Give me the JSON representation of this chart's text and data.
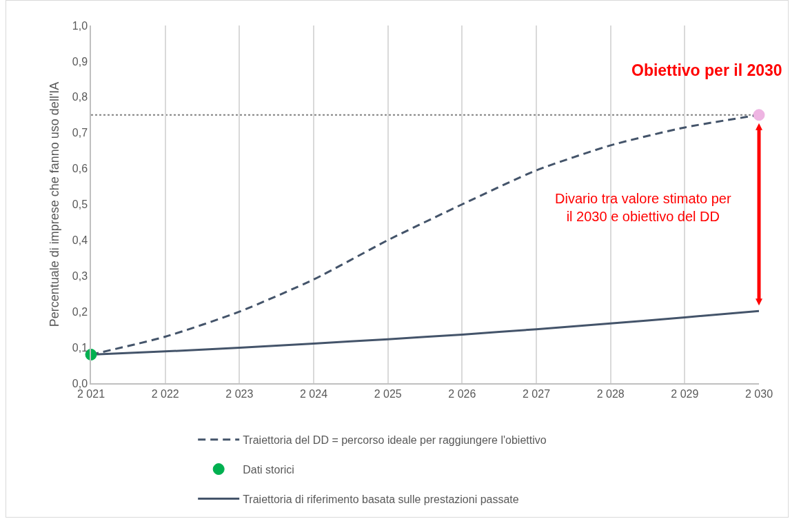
{
  "chart_data": {
    "type": "line",
    "ylabel": "Percentuale di imprese che fanno uso dell'IA",
    "x": [
      2021,
      2022,
      2023,
      2024,
      2025,
      2026,
      2027,
      2028,
      2029,
      2030
    ],
    "series": [
      {
        "name": "Traiettoria del DD = percorso ideale per raggiungere l'obiettivo",
        "color": "#44546a",
        "line_style": "dashed",
        "values": [
          0.08,
          0.13,
          0.2,
          0.29,
          0.4,
          0.5,
          0.595,
          0.665,
          0.715,
          0.75
        ]
      },
      {
        "name": "Dati storici",
        "type": "scatter",
        "color": "#00b050",
        "marker": "circle",
        "x": [
          2021
        ],
        "values": [
          0.08
        ]
      },
      {
        "name": "Traiettoria di riferimento basata sulle prestazioni passate",
        "color": "#44546a",
        "line_style": "solid",
        "values": [
          0.08,
          0.089,
          0.099,
          0.111,
          0.123,
          0.136,
          0.151,
          0.167,
          0.184,
          0.202
        ]
      },
      {
        "type": "scatter",
        "color": "#eeb4e2",
        "marker": "circle",
        "x": [
          2030
        ],
        "values": [
          0.75
        ]
      }
    ],
    "ref_lines": [
      {
        "axis": "y",
        "value": 0.75,
        "color": "#808080",
        "line_style": "dotted"
      }
    ],
    "annotations": [
      {
        "text": "Obiettivo per il 2030",
        "x": 2030,
        "y": 0.75
      },
      "Divario tra valore stimato per il 2030 e obiettivo del DD"
    ],
    "xlim": [
      2021,
      2030
    ],
    "xticks": [
      {
        "value": 2021,
        "label": "2 021"
      },
      {
        "value": 2022,
        "label": "2 022"
      },
      {
        "value": 2023,
        "label": "2 023"
      },
      {
        "value": 2024,
        "label": "2 024"
      },
      {
        "value": 2025,
        "label": "2 025"
      },
      {
        "value": 2026,
        "label": "2 026"
      },
      {
        "value": 2027,
        "label": "2 027"
      },
      {
        "value": 2028,
        "label": "2 028"
      },
      {
        "value": 2029,
        "label": "2 029"
      },
      {
        "value": 2030,
        "label": "2 030"
      }
    ],
    "ylim": [
      0,
      1
    ],
    "yticks": [
      {
        "value": 0,
        "label": "0,0"
      },
      {
        "value": 0.1,
        "label": "0,1"
      },
      {
        "value": 0.2,
        "label": "0,2"
      },
      {
        "value": 0.3,
        "label": "0,3"
      },
      {
        "value": 0.4,
        "label": "0,4"
      },
      {
        "value": 0.5,
        "label": "0,5"
      },
      {
        "value": 0.6,
        "label": "0,6"
      },
      {
        "value": 0.7,
        "label": "0,7"
      },
      {
        "value": 0.8,
        "label": "0,8"
      },
      {
        "value": 0.9,
        "label": "0,9"
      },
      {
        "value": 1,
        "label": "1,0"
      }
    ],
    "grid": "x",
    "legend": "bottom"
  }
}
